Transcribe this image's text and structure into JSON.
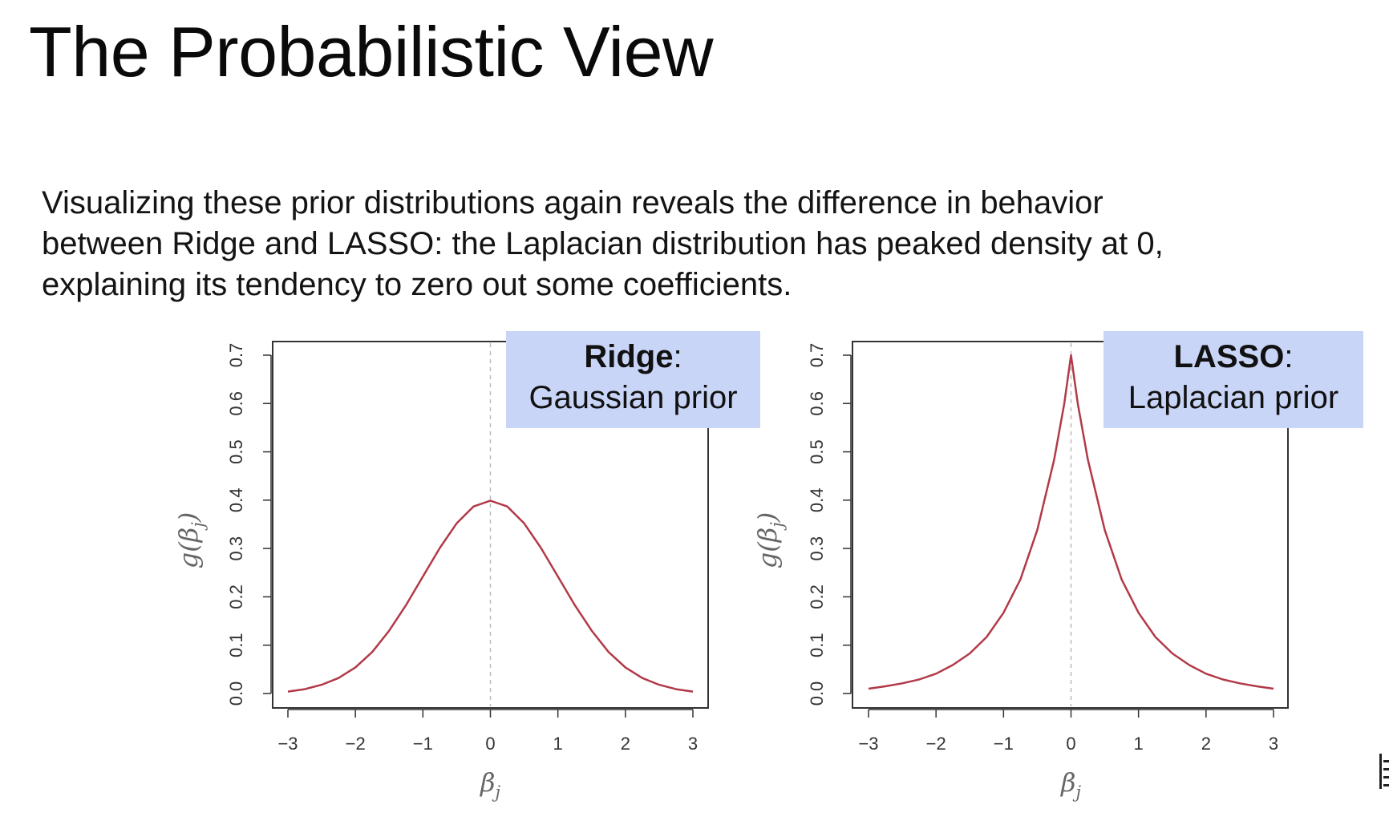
{
  "slide": {
    "title": "The Probabilistic View",
    "paragraph_lines": [
      "Visualizing these prior distributions again reveals the difference in behavior",
      "between Ridge and LASSO: the Laplacian distribution has peaked density at 0,",
      "explaining its tendency to zero out some coefficients."
    ]
  },
  "callouts": {
    "ridge": {
      "bold": "Ridge",
      "rest": ":",
      "line2": "Gaussian prior"
    },
    "lasso": {
      "bold": "LASSO",
      "rest": ":",
      "line2": "Laplacian prior"
    }
  },
  "colors": {
    "curve": "#b23a48",
    "callout_bg": "#c9d5f7",
    "zero_line": "#bbbbbb"
  },
  "chart_data": [
    {
      "type": "line",
      "name": "ridge",
      "title": "",
      "xlabel": "β_j",
      "ylabel": "g(β_j)",
      "xlim": [
        -3,
        3
      ],
      "ylim": [
        0.0,
        0.7
      ],
      "x_ticks": [
        "−3",
        "−2",
        "−1",
        "0",
        "1",
        "2",
        "3"
      ],
      "y_ticks": [
        "0.0",
        "0.1",
        "0.2",
        "0.3",
        "0.4",
        "0.5",
        "0.6",
        "0.7"
      ],
      "grid": false,
      "vertical_reference_line_at_x": 0,
      "series": [
        {
          "x": [
            -3,
            -2.75,
            -2.5,
            -2.25,
            -2,
            -1.75,
            -1.5,
            -1.25,
            -1,
            -0.75,
            -0.5,
            -0.25,
            0,
            0.25,
            0.5,
            0.75,
            1,
            1.25,
            1.5,
            1.75,
            2,
            2.25,
            2.5,
            2.75,
            3
          ],
          "y": [
            0.004,
            0.009,
            0.018,
            0.032,
            0.054,
            0.086,
            0.13,
            0.183,
            0.242,
            0.301,
            0.352,
            0.387,
            0.399,
            0.387,
            0.352,
            0.301,
            0.242,
            0.183,
            0.13,
            0.086,
            0.054,
            0.032,
            0.018,
            0.009,
            0.004
          ]
        }
      ]
    },
    {
      "type": "line",
      "name": "lasso",
      "title": "",
      "xlabel": "β_j",
      "ylabel": "g(β_j)",
      "xlim": [
        -3,
        3
      ],
      "ylim": [
        0.0,
        0.7
      ],
      "x_ticks": [
        "−3",
        "−2",
        "−1",
        "0",
        "1",
        "2",
        "3"
      ],
      "y_ticks": [
        "0.0",
        "0.1",
        "0.2",
        "0.3",
        "0.4",
        "0.5",
        "0.6",
        "0.7"
      ],
      "grid": false,
      "vertical_reference_line_at_x": 0,
      "series": [
        {
          "x": [
            -3,
            -2.75,
            -2.5,
            -2.25,
            -2,
            -1.75,
            -1.5,
            -1.25,
            -1,
            -0.75,
            -0.5,
            -0.25,
            -0.1,
            0,
            0.1,
            0.25,
            0.5,
            0.75,
            1,
            1.25,
            1.5,
            1.75,
            2,
            2.25,
            2.5,
            2.75,
            3
          ],
          "y": [
            0.01,
            0.015,
            0.021,
            0.029,
            0.041,
            0.059,
            0.083,
            0.117,
            0.167,
            0.236,
            0.338,
            0.484,
            0.6,
            0.7,
            0.6,
            0.484,
            0.338,
            0.236,
            0.167,
            0.117,
            0.083,
            0.059,
            0.041,
            0.029,
            0.021,
            0.015,
            0.01
          ]
        }
      ]
    }
  ]
}
